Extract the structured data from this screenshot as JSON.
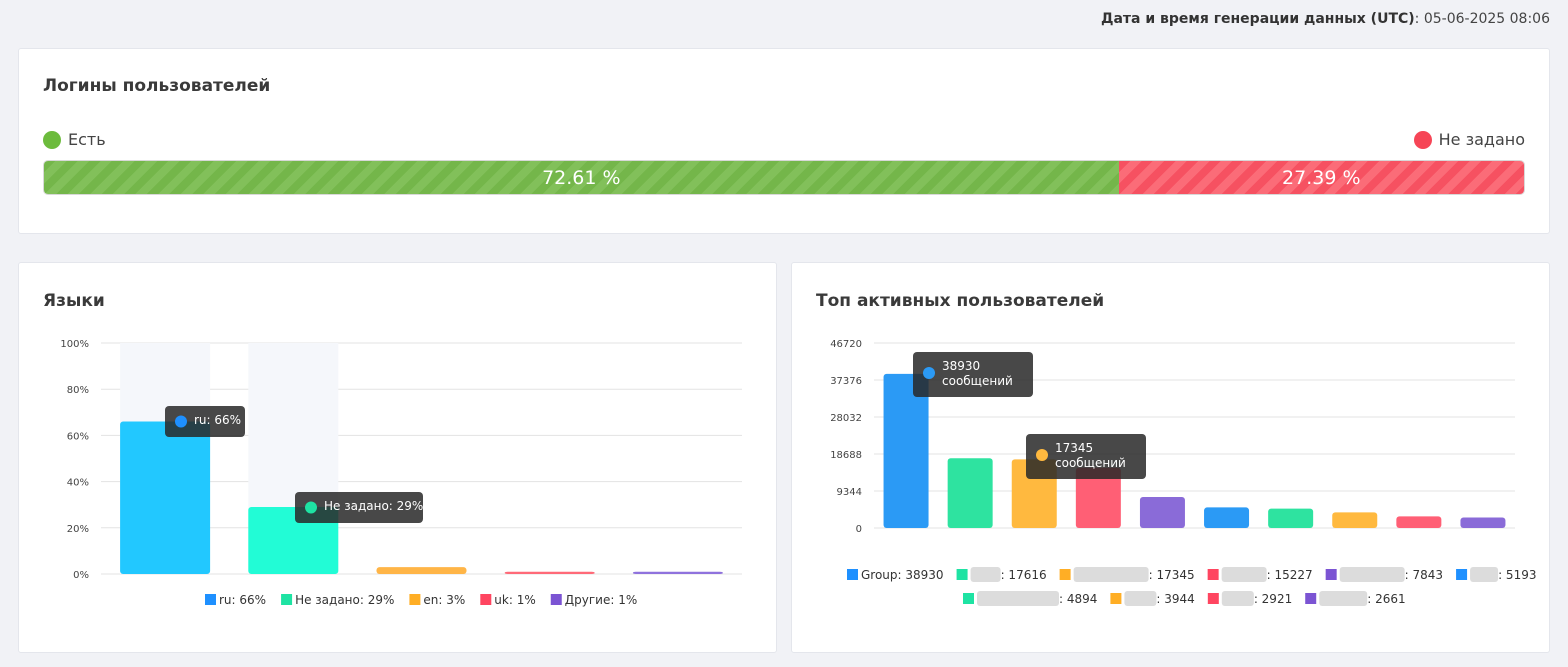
{
  "header": {
    "generated_label": "Дата и время генерации данных (UTC)",
    "generated_value": ": 05-06-2025 08:06"
  },
  "logins": {
    "title": "Логины пользователей",
    "legend_yes": "Есть",
    "legend_no": "Не задано",
    "yes_percent": 72.61,
    "no_percent": 27.39,
    "yes_text": "72.61 %",
    "no_text": "27.39 %",
    "colors": {
      "yes": "#7cbc51",
      "no": "#fa5d69"
    }
  },
  "languages": {
    "title": "Языки",
    "tooltips": [
      "ru: 66%",
      "Не задано: 29%"
    ],
    "chart_data": {
      "type": "bar",
      "categories": [
        "ru",
        "Не задано",
        "en",
        "uk",
        "Другие"
      ],
      "values": [
        66,
        29,
        3,
        1,
        1
      ],
      "ylim": [
        0,
        100
      ],
      "y_ticks": [
        "0%",
        "20%",
        "40%",
        "60%",
        "80%",
        "100%"
      ],
      "legend": [
        "ru: 66%",
        "Не задано: 29%",
        "en: 3%",
        "uk: 1%",
        "Другие: 1%"
      ],
      "legend_colors": [
        "#1e90ff",
        "#1ee3a3",
        "#ffae25",
        "#ff4560",
        "#7b54d3"
      ],
      "bar_colors": [
        "#22c8ff",
        "#22fcd6",
        "#ffb547",
        "#ff6a78",
        "#8f72dd"
      ],
      "grid": true
    }
  },
  "top_users": {
    "title": "Топ активных пользователей",
    "tooltips": [
      {
        "value": "38930",
        "unit": "сообщений"
      },
      {
        "value": "17345",
        "unit": "сообщений"
      }
    ],
    "chart_data": {
      "type": "bar",
      "categories": [
        "Group",
        "",
        "",
        "",
        "",
        "",
        "",
        "",
        "",
        ""
      ],
      "values": [
        38930,
        17616,
        17345,
        15227,
        7843,
        5193,
        4894,
        3944,
        2921,
        2661
      ],
      "ylim": [
        0,
        46720
      ],
      "y_ticks": [
        "0",
        "9344",
        "18688",
        "28032",
        "37376",
        "46720"
      ],
      "legend": [
        "Group: 38930",
        ": 17616",
        ": 17345",
        ": 15227",
        ": 7843",
        ": 5193",
        ": 4894",
        ": 3944",
        ": 2921",
        ": 2661"
      ],
      "legend_colors": [
        "#1e90ff",
        "#1ee3a3",
        "#ffae25",
        "#ff4560",
        "#7b54d3",
        "#1e90ff",
        "#1ee3a3",
        "#ffae25",
        "#ff4560",
        "#7b54d3"
      ],
      "bar_colors": [
        "#2b9af5",
        "#2ee3a0",
        "#ffb93f",
        "#ff5f75",
        "#8a6bd8",
        "#2b9af5",
        "#2ee3a0",
        "#ffb93f",
        "#ff5f75",
        "#8a6bd8"
      ],
      "grid": true
    }
  }
}
